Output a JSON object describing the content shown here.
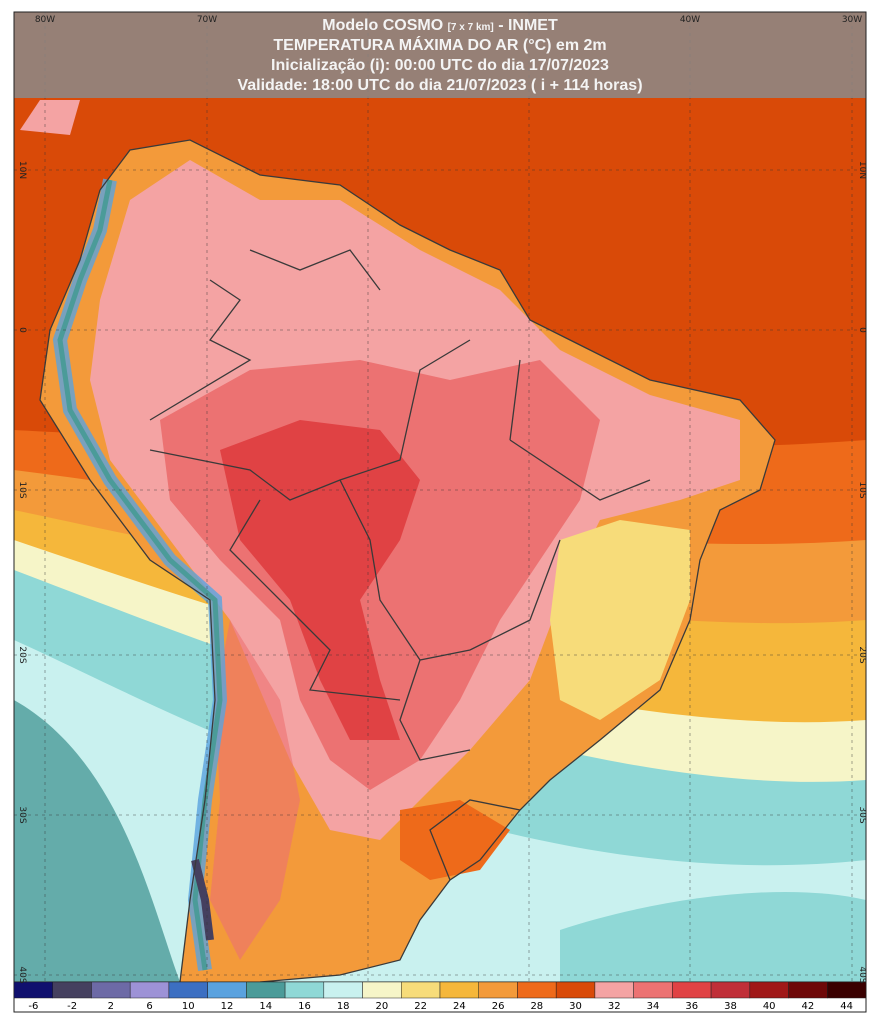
{
  "header": {
    "model": "Modelo COSMO",
    "resolution": "[7 x 7 km]",
    "source": "- INMET",
    "variable": "TEMPERATURA MÁXIMA DO AR (°C) em 2m",
    "init": "Inicialização (i): 00:00 UTC do dia 17/07/2023",
    "valid": "Validade: 18:00 UTC do dia 21/07/2023 ( i + 114 horas)"
  },
  "map": {
    "lon_labels": [
      "80W",
      "70W",
      "40W",
      "30W"
    ],
    "lat_labels": [
      "10N",
      "0",
      "10S",
      "20S",
      "30S",
      "40S"
    ]
  },
  "legend": [
    {
      "value": -6,
      "color": "#10106e"
    },
    {
      "value": -2,
      "color": "#45405f"
    },
    {
      "value": 2,
      "color": "#6d6aa6"
    },
    {
      "value": 6,
      "color": "#9d92d6"
    },
    {
      "value": 10,
      "color": "#3c6fc2"
    },
    {
      "value": 12,
      "color": "#5aa2df"
    },
    {
      "value": 14,
      "color": "#4b9b99"
    },
    {
      "value": 16,
      "color": "#8fd8d6"
    },
    {
      "value": 18,
      "color": "#c9f1ef"
    },
    {
      "value": 20,
      "color": "#f6f5c8"
    },
    {
      "value": 22,
      "color": "#f7dc7a"
    },
    {
      "value": 24,
      "color": "#f5b73b"
    },
    {
      "value": 26,
      "color": "#f39a3a"
    },
    {
      "value": 28,
      "color": "#ee6a1a"
    },
    {
      "value": 30,
      "color": "#d94a08"
    },
    {
      "value": 32,
      "color": "#f4a3a3"
    },
    {
      "value": 34,
      "color": "#ec7272"
    },
    {
      "value": 36,
      "color": "#e04244"
    },
    {
      "value": 38,
      "color": "#c02f38"
    },
    {
      "value": 40,
      "color": "#a01818"
    },
    {
      "value": 42,
      "color": "#6e0808"
    },
    {
      "value": 44,
      "color": "#3a0000"
    }
  ]
}
